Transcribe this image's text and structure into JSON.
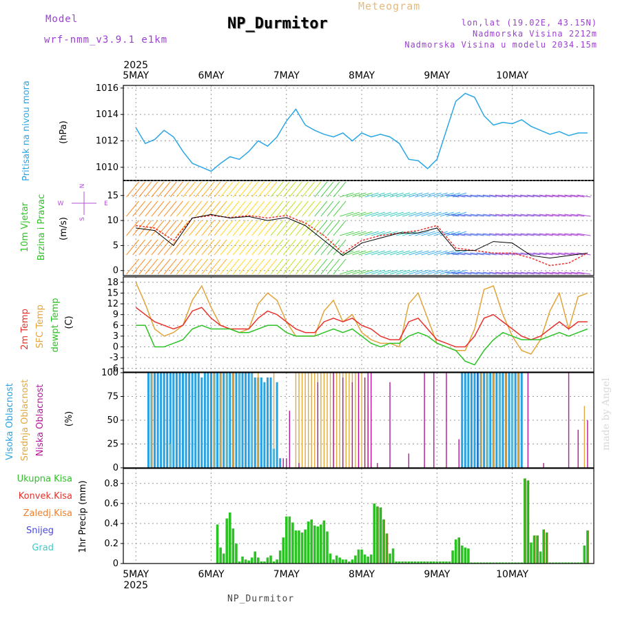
{
  "header": {
    "model_label": "Model",
    "model_name": "wrf-nmm_v3.9.1 e1km",
    "meteogram_label": "Meteogram",
    "station_title": "NP_Durmitor",
    "lonlat": "lon,lat (19.02E, 43.15N)",
    "altitude": "Nadmorska Visina 2212m",
    "model_altitude": "Nadmorska Visina u modelu 2034.15m"
  },
  "footer": {
    "station": "NP_Durmitor"
  },
  "watermark": "made by Angel",
  "time_axis": {
    "year": "2025",
    "days": [
      "5MAY",
      "6MAY",
      "7MAY",
      "8MAY",
      "9MAY",
      "10MAY"
    ]
  },
  "colors": {
    "pressure": "#2aa6e6",
    "temp2m": "#e8312b",
    "sfc_temp": "#e2a43a",
    "dewpoint": "#2bc224",
    "high_cloud": "#27a2e2",
    "mid_cloud": "#e1a93b",
    "low_cloud": "#b5179d",
    "precip_total": "#2bc224",
    "precip_convective": "#e8312b",
    "precip_frozen": "#f08030",
    "snow": "#4848e0",
    "hail": "#40c8c8",
    "wind_mean": "#000000",
    "wind_gust": "#e8312b",
    "axis_label_purple": "#b44fd8"
  },
  "chart_data": [
    {
      "type": "line",
      "panel": "pressure",
      "ylabel": "Pritisak na nivou mora",
      "units": "(hPa)",
      "ylim": [
        1009,
        1016.2
      ],
      "yticks": [
        1010,
        1012,
        1014,
        1016
      ],
      "x_hours": [
        0,
        3,
        6,
        9,
        12,
        15,
        18,
        21,
        24,
        27,
        30,
        33,
        36,
        39,
        42,
        45,
        48,
        51,
        54,
        57,
        60,
        63,
        66,
        69,
        72,
        75,
        78,
        81,
        84,
        87,
        90,
        93,
        96,
        99,
        102,
        105,
        108,
        111,
        114,
        117,
        120,
        123,
        126,
        129,
        132,
        135,
        138,
        141,
        144
      ],
      "series": [
        {
          "name": "Pritisak",
          "values": [
            1013.0,
            1011.8,
            1012.1,
            1012.8,
            1012.3,
            1011.2,
            1010.3,
            1010.0,
            1009.7,
            1010.3,
            1010.8,
            1010.6,
            1011.2,
            1012.0,
            1011.6,
            1012.3,
            1013.5,
            1014.4,
            1013.2,
            1012.8,
            1012.5,
            1012.3,
            1012.6,
            1012.0,
            1012.6,
            1012.3,
            1012.5,
            1012.3,
            1011.8,
            1010.6,
            1010.5,
            1009.9,
            1010.6,
            1012.8,
            1015.0,
            1015.6,
            1015.3,
            1013.9,
            1013.2,
            1013.4,
            1013.3,
            1013.6,
            1013.1,
            1012.8,
            1012.5,
            1012.7,
            1012.4,
            1012.6,
            1012.6
          ]
        }
      ]
    },
    {
      "type": "line",
      "panel": "wind",
      "ylabel": "10m Vjetar Brzina i Pravac",
      "units": "(m/s)",
      "compass": {
        "north": "N",
        "east": "E",
        "south": "S",
        "west": "W"
      },
      "ylim": [
        -1,
        18
      ],
      "yticks": [
        0,
        5,
        10,
        15
      ],
      "x_hours": [
        0,
        6,
        12,
        18,
        24,
        30,
        36,
        42,
        48,
        54,
        60,
        66,
        72,
        78,
        84,
        90,
        96,
        102,
        108,
        114,
        120,
        126,
        132,
        138,
        144
      ],
      "series": [
        {
          "name": "wind_speed",
          "values": [
            8.5,
            8.0,
            5.0,
            10.5,
            11.2,
            10.5,
            10.8,
            10.0,
            10.6,
            9.0,
            6.0,
            3.0,
            5.5,
            6.5,
            7.5,
            7.5,
            8.5,
            4.0,
            4.0,
            5.8,
            5.5,
            3.0,
            2.5,
            3.0,
            3.5
          ]
        },
        {
          "name": "wind_gust",
          "values": [
            9.0,
            8.5,
            6.0,
            10.5,
            11.0,
            10.6,
            11.0,
            10.5,
            11.0,
            9.5,
            7.0,
            3.5,
            6.0,
            7.0,
            7.5,
            8.0,
            9.0,
            4.5,
            4.0,
            3.5,
            3.5,
            2.5,
            1.0,
            1.5,
            3.5
          ]
        }
      ]
    },
    {
      "type": "line",
      "panel": "temperature",
      "ylabels": [
        "2m Temp",
        "SFC Temp",
        "dewpt Temp"
      ],
      "units": "(C)",
      "ylim": [
        -7,
        19.5
      ],
      "yticks": [
        -6,
        -3,
        0,
        3,
        6,
        9,
        12,
        15,
        18
      ],
      "x_hours": [
        0,
        3,
        6,
        9,
        12,
        15,
        18,
        21,
        24,
        27,
        30,
        33,
        36,
        39,
        42,
        45,
        48,
        51,
        54,
        57,
        60,
        63,
        66,
        69,
        72,
        75,
        78,
        81,
        84,
        87,
        90,
        93,
        96,
        99,
        102,
        105,
        108,
        111,
        114,
        117,
        120,
        123,
        126,
        129,
        132,
        135,
        138,
        141,
        144
      ],
      "series": [
        {
          "name": "2m Temp",
          "values": [
            11,
            9,
            7,
            6,
            5,
            6,
            10,
            11,
            8,
            6,
            5,
            5,
            5,
            8,
            10,
            9,
            7,
            5,
            4,
            4,
            7,
            8,
            7,
            8,
            6,
            5,
            3,
            2,
            2,
            7,
            8,
            5,
            2,
            1,
            0,
            0,
            3,
            8,
            9,
            7,
            5,
            3,
            2,
            3,
            5,
            7,
            5,
            7,
            7
          ]
        },
        {
          "name": "SFC Temp",
          "values": [
            18,
            12,
            5,
            3,
            4,
            6,
            13,
            17,
            11,
            6,
            5,
            4,
            5,
            12,
            15,
            13,
            7,
            3,
            3,
            3,
            10,
            13,
            7,
            9,
            4,
            2,
            1,
            1,
            0,
            12,
            15,
            8,
            1,
            0,
            -1,
            -1,
            5,
            16,
            17,
            9,
            3,
            -1,
            -2,
            2,
            10,
            15,
            5,
            14,
            15
          ]
        },
        {
          "name": "dewpt Temp",
          "values": [
            6,
            6,
            0,
            0,
            1,
            2,
            5,
            6,
            5,
            5,
            5,
            4,
            4,
            5,
            6,
            6,
            4,
            3,
            3,
            3,
            4,
            5,
            4,
            5,
            3,
            1,
            0,
            1,
            1,
            3,
            4,
            3,
            1,
            0,
            -1,
            -4,
            -5,
            -1,
            2,
            4,
            3,
            2,
            2,
            2,
            3,
            4,
            3,
            4,
            5
          ]
        }
      ]
    },
    {
      "type": "bar",
      "panel": "cloud",
      "ylabels": [
        "Visoka Oblacnost",
        "Srednja Oblacnost",
        "Niska Oblacnost"
      ],
      "units": "(%)",
      "ylim": [
        0,
        100
      ],
      "yticks": [
        0,
        25,
        50,
        75,
        100
      ],
      "series": [
        {
          "name": "Visoka Oblacnost",
          "hours": [
            4,
            5,
            6,
            7,
            8,
            9,
            10,
            11,
            12,
            13,
            14,
            15,
            16,
            17,
            18,
            19,
            20,
            21,
            22,
            23,
            24,
            25,
            26,
            27,
            28,
            29,
            30,
            31,
            32,
            33,
            34,
            35,
            36,
            37,
            38,
            39,
            40,
            41,
            42,
            43,
            44,
            45,
            46,
            104,
            105,
            106,
            107,
            108,
            109,
            110,
            111,
            112,
            113,
            114,
            115,
            116,
            117,
            118,
            119,
            120,
            121,
            122,
            123
          ],
          "values": [
            100,
            100,
            100,
            100,
            100,
            100,
            100,
            100,
            100,
            100,
            100,
            100,
            100,
            100,
            100,
            100,
            100,
            95,
            100,
            100,
            100,
            100,
            100,
            100,
            100,
            100,
            100,
            100,
            100,
            100,
            100,
            100,
            100,
            100,
            95,
            95,
            95,
            90,
            95,
            95,
            20,
            90,
            10,
            100,
            100,
            100,
            100,
            100,
            100,
            100,
            100,
            100,
            100,
            100,
            100,
            100,
            100,
            100,
            100,
            100,
            100,
            100,
            100
          ]
        },
        {
          "name": "Srednja Oblacnost",
          "hours": [
            5,
            11,
            25,
            27,
            29,
            31,
            33,
            37,
            39,
            44,
            51,
            52,
            53,
            54,
            55,
            56,
            57,
            58,
            59,
            60,
            61,
            62,
            63,
            64,
            65,
            66,
            67,
            68,
            69,
            70,
            71,
            72,
            73,
            74,
            75,
            110,
            112,
            114,
            116,
            118,
            120,
            122,
            143
          ],
          "values": [
            100,
            25,
            100,
            100,
            100,
            100,
            100,
            100,
            100,
            100,
            100,
            100,
            100,
            100,
            100,
            100,
            100,
            100,
            100,
            100,
            100,
            100,
            100,
            100,
            100,
            100,
            100,
            100,
            100,
            100,
            100,
            100,
            95,
            65,
            60,
            100,
            100,
            100,
            100,
            100,
            100,
            100,
            65
          ]
        },
        {
          "name": "Niska Oblacnost",
          "hours": [
            47,
            48,
            49,
            52,
            58,
            63,
            66,
            69,
            71,
            73,
            74,
            75,
            77,
            81,
            87,
            92,
            95,
            99,
            103,
            109,
            125,
            130,
            138,
            141,
            144
          ],
          "values": [
            10,
            10,
            60,
            5,
            90,
            100,
            95,
            90,
            100,
            95,
            100,
            100,
            5,
            90,
            15,
            100,
            100,
            100,
            30,
            100,
            100,
            5,
            100,
            40,
            50
          ]
        }
      ]
    },
    {
      "type": "bar",
      "panel": "precipitation",
      "ylabels": [
        "Ukupna Kisa",
        "Konvek.Kisa",
        "Zaledj.Kisa",
        "Snijeg",
        "Grad"
      ],
      "units": "1hr Precip (mm)",
      "ylim": [
        0,
        0.95
      ],
      "yticks": [
        0,
        0.2,
        0.4,
        0.6,
        0.8
      ],
      "series": [
        {
          "name": "Ukupna Kisa",
          "hours": [
            26,
            27,
            28,
            29,
            30,
            31,
            32,
            33,
            34,
            35,
            36,
            37,
            38,
            39,
            40,
            41,
            42,
            43,
            44,
            45,
            46,
            47,
            48,
            49,
            50,
            51,
            52,
            53,
            54,
            55,
            56,
            57,
            58,
            59,
            60,
            61,
            62,
            63,
            64,
            65,
            66,
            67,
            68,
            69,
            70,
            71,
            72,
            73,
            74,
            75,
            76,
            77,
            78,
            79,
            80,
            81,
            82,
            83,
            84,
            85,
            86,
            87,
            88,
            89,
            90,
            91,
            92,
            93,
            94,
            95,
            96,
            97,
            98,
            99,
            100,
            101,
            102,
            103,
            104,
            105,
            106,
            107,
            108,
            109,
            110,
            111,
            112,
            113,
            114,
            115,
            116,
            117,
            118,
            119,
            120,
            121,
            122,
            123,
            124,
            125,
            126,
            127,
            128,
            129,
            130,
            131,
            132,
            133,
            134,
            135,
            136,
            137,
            138,
            139,
            140,
            141,
            142,
            143,
            144
          ],
          "values": [
            0.39,
            0.16,
            0.1,
            0.45,
            0.51,
            0.35,
            0.2,
            0.02,
            0.07,
            0.04,
            0.03,
            0.06,
            0.12,
            0.06,
            0.02,
            0.02,
            0.06,
            0.08,
            0.02,
            0.04,
            0.13,
            0.26,
            0.47,
            0.47,
            0.41,
            0.33,
            0.33,
            0.31,
            0.34,
            0.42,
            0.44,
            0.38,
            0.37,
            0.39,
            0.43,
            0.32,
            0.1,
            0.04,
            0.08,
            0.06,
            0.04,
            0.04,
            0.02,
            0.04,
            0.08,
            0.14,
            0.14,
            0.09,
            0.07,
            0.09,
            0.6,
            0.57,
            0.56,
            0.44,
            0.3,
            0.1,
            0.15,
            0.02,
            0.02,
            0.02,
            0.02,
            0.02,
            0.02,
            0.02,
            0.02,
            0.02,
            0.02,
            0.02,
            0.02,
            0.02,
            0.02,
            0.02,
            0.02,
            0.02,
            0.02,
            0.13,
            0.24,
            0.26,
            0.18,
            0.16,
            0.15,
            0.01,
            0.01,
            0.01,
            0.01,
            0.01,
            0.01,
            0.01,
            0.01,
            0.01,
            0.01,
            0.01,
            0.01,
            0.01,
            0.01,
            0.01,
            0.01,
            0.01,
            0.85,
            0.83,
            0.21,
            0.28,
            0.28,
            0.12,
            0.34,
            0.31,
            0.01,
            0.01,
            0.01,
            0.01,
            0.01,
            0.01,
            0.01,
            0.01,
            0.01,
            0.01,
            0.01,
            0.18,
            0.33
          ]
        }
      ]
    }
  ]
}
